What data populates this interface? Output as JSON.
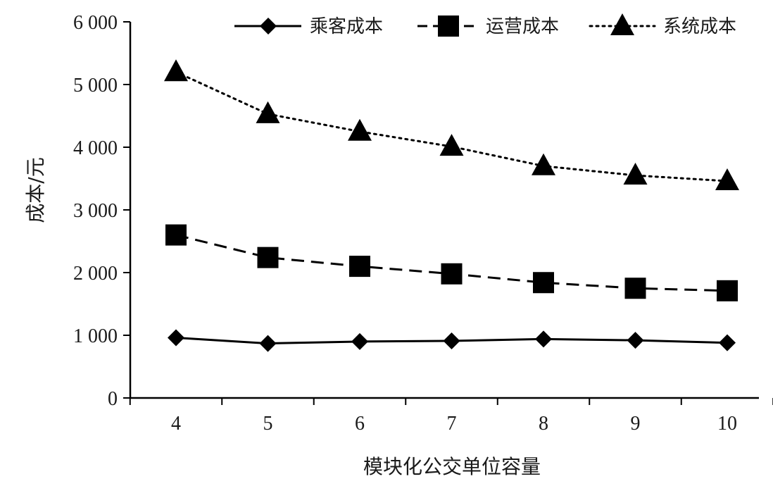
{
  "chart_data": {
    "type": "line",
    "xlabel": "模块化公交单位容量",
    "ylabel": "成本/元",
    "x": [
      4,
      5,
      6,
      7,
      8,
      9,
      10
    ],
    "x_tick_labels": [
      "4",
      "5",
      "6",
      "7",
      "8",
      "9",
      "10"
    ],
    "ylim": [
      0,
      6000
    ],
    "y_ticks": [
      0,
      1000,
      2000,
      3000,
      4000,
      5000,
      6000
    ],
    "y_tick_labels": [
      "0",
      "1 000",
      "2 000",
      "3 000",
      "4 000",
      "5 000",
      "6 000"
    ],
    "grid": false,
    "legend_position": "top",
    "series": [
      {
        "name": "乘客成本",
        "line_style": "solid",
        "marker": "diamond",
        "color": "#000000",
        "values": [
          960,
          870,
          900,
          910,
          940,
          920,
          880
        ]
      },
      {
        "name": "运营成本",
        "line_style": "dashed",
        "marker": "square",
        "color": "#000000",
        "values": [
          2600,
          2240,
          2100,
          1980,
          1840,
          1750,
          1710
        ]
      },
      {
        "name": "系统成本",
        "line_style": "dotted",
        "marker": "triangle",
        "color": "#000000",
        "values": [
          5200,
          4530,
          4250,
          4010,
          3700,
          3550,
          3460
        ]
      }
    ]
  }
}
